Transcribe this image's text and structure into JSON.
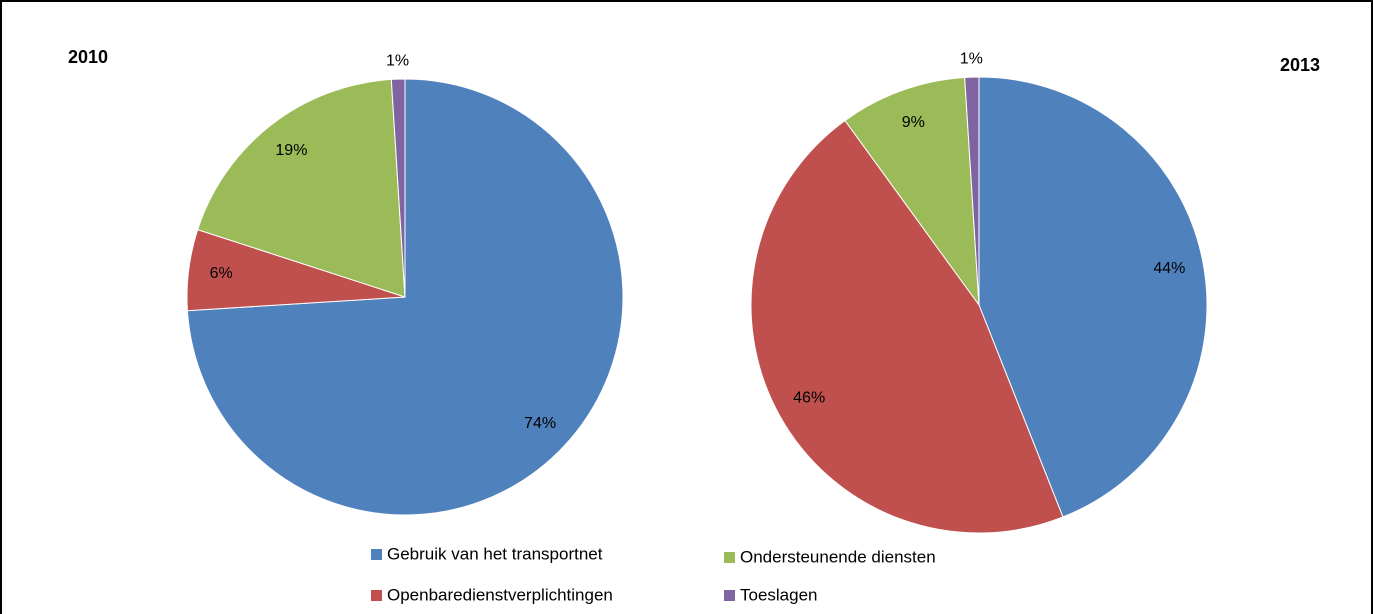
{
  "categories": [
    "Gebruik van het transportnet",
    "Openbaredienstverplichtingen",
    "Ondersteunende diensten",
    "Toeslagen"
  ],
  "colors": [
    "#4f81bd",
    "#c0504d",
    "#9bbb59",
    "#8064a2"
  ],
  "chart_data": [
    {
      "type": "pie",
      "title": "2010",
      "values": [
        74,
        6,
        19,
        1
      ],
      "value_labels": [
        "74%",
        "6%",
        "19%",
        "1%"
      ]
    },
    {
      "type": "pie",
      "title": "2013",
      "values": [
        44,
        46,
        9,
        1
      ],
      "value_labels": [
        "44%",
        "46%",
        "9%",
        "1%"
      ]
    }
  ]
}
